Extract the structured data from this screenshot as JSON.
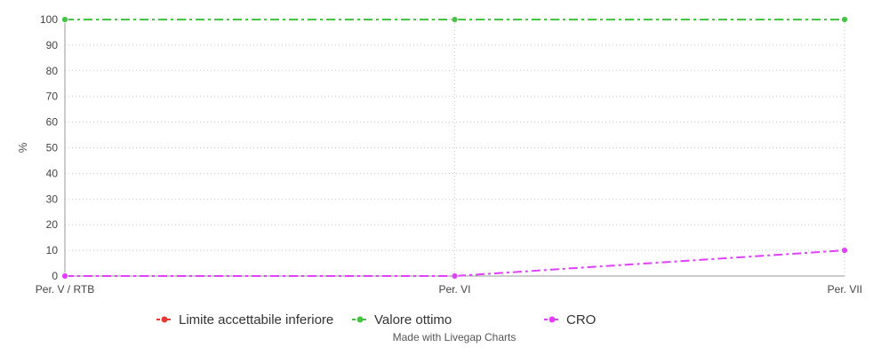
{
  "chart_data": {
    "type": "line",
    "categories": [
      "Per. V / RTB",
      "Per. VI",
      "Per. VII"
    ],
    "series": [
      {
        "name": "Limite accettabile inferiore",
        "values": [
          100,
          100,
          100
        ],
        "color": "#e53935",
        "dash": "dashdot"
      },
      {
        "name": "Valore ottimo",
        "values": [
          100,
          100,
          100
        ],
        "color": "#43c443",
        "dash": "dashdot"
      },
      {
        "name": "CRO",
        "values": [
          0,
          0,
          10
        ],
        "color": "#e040fb",
        "dash": "dashdot"
      }
    ],
    "ylabel": "%",
    "xlabel": "",
    "ylim": [
      0,
      100
    ],
    "yticks": [
      0,
      10,
      20,
      30,
      40,
      50,
      60,
      70,
      80,
      90,
      100
    ],
    "grid": true,
    "legend_position": "bottom"
  },
  "credit": "Made with Livegap Charts"
}
